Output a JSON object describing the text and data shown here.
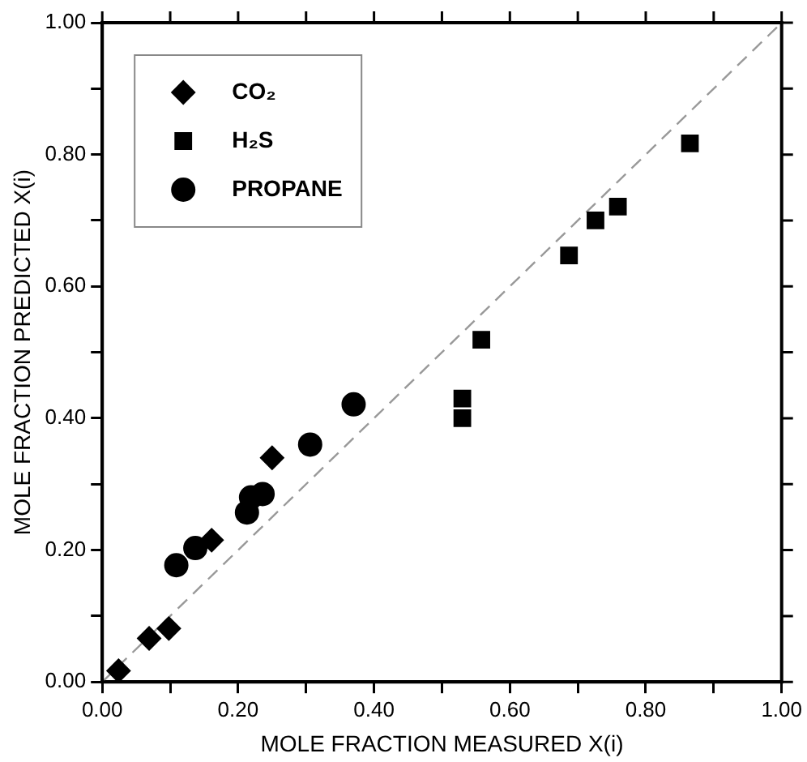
{
  "chart_data": {
    "type": "scatter",
    "xlabel": "MOLE FRACTION MEASURED X(i)",
    "ylabel": "MOLE FRACTION PREDICTED X(i)",
    "xlim": [
      0,
      1
    ],
    "ylim": [
      0,
      1
    ],
    "xticks": [
      {
        "value": 0,
        "label": "0.00"
      },
      {
        "value": 0.1,
        "label": null
      },
      {
        "value": 0.2,
        "label": "0.20"
      },
      {
        "value": 0.3,
        "label": null
      },
      {
        "value": 0.4,
        "label": "0.40"
      },
      {
        "value": 0.5,
        "label": null
      },
      {
        "value": 0.6,
        "label": "0.60"
      },
      {
        "value": 0.7,
        "label": null
      },
      {
        "value": 0.8,
        "label": "0.80"
      },
      {
        "value": 0.9,
        "label": null
      },
      {
        "value": 1,
        "label": "1.00"
      }
    ],
    "yticks": [
      {
        "value": 0,
        "label": "0.00"
      },
      {
        "value": 0.1,
        "label": null
      },
      {
        "value": 0.2,
        "label": "0.20"
      },
      {
        "value": 0.3,
        "label": null
      },
      {
        "value": 0.4,
        "label": "0.40"
      },
      {
        "value": 0.5,
        "label": null
      },
      {
        "value": 0.6,
        "label": "0.60"
      },
      {
        "value": 0.7,
        "label": null
      },
      {
        "value": 0.8,
        "label": "0.80"
      },
      {
        "value": 0.9,
        "label": null
      },
      {
        "value": 1,
        "label": "1.00"
      }
    ],
    "grid": false,
    "legend": "top left",
    "series": [
      {
        "name": "CO₂",
        "color": "#000000",
        "marker": "diamond",
        "x": [
          0.024,
          0.069,
          0.098,
          0.161,
          0.25
        ],
        "values": [
          0.017,
          0.066,
          0.081,
          0.215,
          0.34
        ]
      },
      {
        "name": "H₂S",
        "color": "#000000",
        "marker": "square",
        "x": [
          0.53,
          0.53,
          0.558,
          0.687,
          0.726,
          0.759,
          0.865
        ],
        "values": [
          0.43,
          0.4,
          0.519,
          0.647,
          0.7,
          0.721,
          0.817
        ]
      },
      {
        "name": "PROPANE",
        "color": "#000000",
        "marker": "circle",
        "x": [
          0.109,
          0.137,
          0.213,
          0.219,
          0.236,
          0.306,
          0.37
        ],
        "values": [
          0.177,
          0.203,
          0.257,
          0.28,
          0.285,
          0.36,
          0.421
        ]
      },
      {
        "type": "line",
        "color": "#999999",
        "line_style": "dashed",
        "marker": "none",
        "x": [
          0,
          1
        ],
        "values": [
          0,
          1
        ]
      }
    ]
  }
}
